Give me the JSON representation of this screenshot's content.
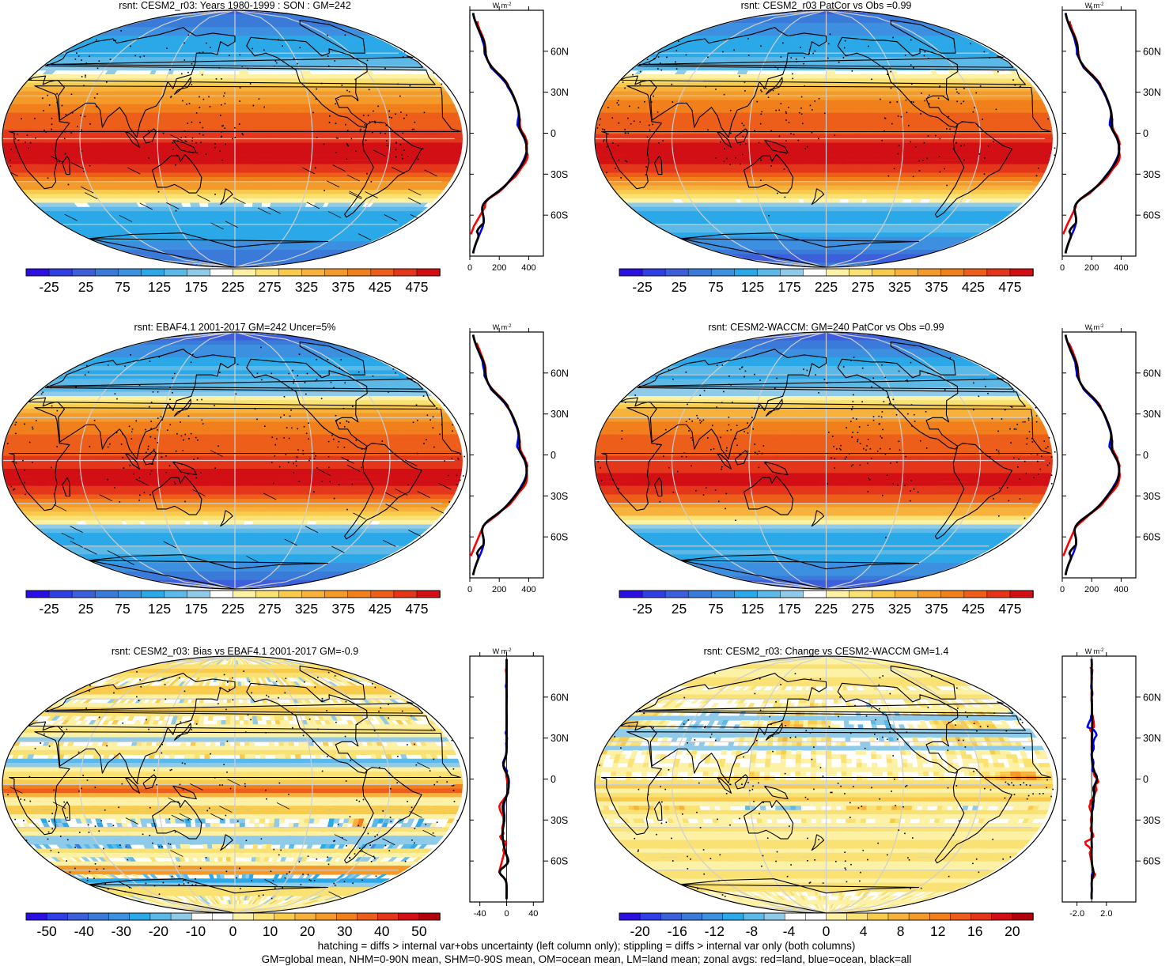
{
  "panels": [
    {
      "id": "p1",
      "title": "rsnt: CESM2_r03: Years 1980-1999 : SON : GM=242",
      "field": "mean",
      "hatch": true,
      "colorbar": {
        "ticks": [
          "-25",
          "25",
          "75",
          "125",
          "175",
          "225",
          "275",
          "325",
          "375",
          "425",
          "475"
        ]
      },
      "zonal": {
        "xticks": [
          {
            "v": 0,
            "t": "0"
          },
          {
            "v": 200,
            "t": "200"
          },
          {
            "v": 400,
            "t": "400"
          }
        ],
        "xlim": [
          0,
          500
        ],
        "unit": "W m-2",
        "mode": "mean"
      }
    },
    {
      "id": "p2",
      "title": "rsnt: CESM2_r03 PatCor vs Obs =0.99",
      "field": "mean",
      "hatch": false,
      "colorbar": {
        "ticks": [
          "-25",
          "25",
          "75",
          "125",
          "175",
          "225",
          "275",
          "325",
          "375",
          "425",
          "475"
        ]
      },
      "zonal": {
        "xticks": [
          {
            "v": 0,
            "t": "0"
          },
          {
            "v": 200,
            "t": "200"
          },
          {
            "v": 400,
            "t": "400"
          }
        ],
        "xlim": [
          0,
          500
        ],
        "unit": "W m-2",
        "mode": "mean"
      }
    },
    {
      "id": "p3",
      "title": "rsnt: EBAF4.1 2001-2017 GM=242 Uncer=5%",
      "field": "mean",
      "hatch": true,
      "colorbar": {
        "ticks": [
          "-25",
          "25",
          "75",
          "125",
          "175",
          "225",
          "275",
          "325",
          "375",
          "425",
          "475"
        ]
      },
      "zonal": {
        "xticks": [
          {
            "v": 0,
            "t": "0"
          },
          {
            "v": 200,
            "t": "200"
          },
          {
            "v": 400,
            "t": "400"
          }
        ],
        "xlim": [
          0,
          500
        ],
        "unit": "W m-2",
        "mode": "mean"
      }
    },
    {
      "id": "p4",
      "title": "rsnt: CESM2-WACCM: GM=240 PatCor vs Obs =0.99",
      "field": "mean",
      "hatch": false,
      "colorbar": {
        "ticks": [
          "-25",
          "25",
          "75",
          "125",
          "175",
          "225",
          "275",
          "325",
          "375",
          "425",
          "475"
        ]
      },
      "zonal": {
        "xticks": [
          {
            "v": 0,
            "t": "0"
          },
          {
            "v": 200,
            "t": "200"
          },
          {
            "v": 400,
            "t": "400"
          }
        ],
        "xlim": [
          0,
          500
        ],
        "unit": "W m-2",
        "mode": "mean"
      }
    },
    {
      "id": "p5",
      "title": "rsnt: CESM2_r03: Bias vs EBAF4.1 2001-2017  GM=-0.9",
      "field": "bias",
      "hatch": true,
      "colorbar": {
        "ticks": [
          "-50",
          "-40",
          "-30",
          "-20",
          "-10",
          "0",
          "10",
          "20",
          "30",
          "40",
          "50"
        ]
      },
      "zonal": {
        "xticks": [
          {
            "v": -40,
            "t": "-40"
          },
          {
            "v": 0,
            "t": "0"
          },
          {
            "v": 40,
            "t": "40"
          }
        ],
        "xlim": [
          -55,
          55
        ],
        "unit": "W m-2",
        "mode": "bias"
      }
    },
    {
      "id": "p6",
      "title": "rsnt: CESM2_r03: Change vs CESM2-WACCM GM=1.4",
      "field": "change",
      "hatch": false,
      "colorbar": {
        "ticks": [
          "-20",
          "-16",
          "-12",
          "-8",
          "-4",
          "0",
          "4",
          "8",
          "12",
          "16",
          "20"
        ]
      },
      "zonal": {
        "xticks": [
          {
            "v": -2,
            "t": "-2.0"
          },
          {
            "v": 2,
            "t": "2.0"
          }
        ],
        "xlim": [
          -4,
          6
        ],
        "unit": "W m-2",
        "mode": "change"
      }
    }
  ],
  "lat_labels": [
    "60N",
    "30N",
    "0",
    "30S",
    "60S"
  ],
  "palette_mean": [
    "#2a0fe0",
    "#2f3fe4",
    "#3d5fdb",
    "#3a7ad9",
    "#3d8fe0",
    "#2aa8e8",
    "#5cb8e6",
    "#8fcbe8",
    "#ffffff",
    "#fdf1a5",
    "#fae173",
    "#f8cb4c",
    "#f6b23c",
    "#f39a2a",
    "#f07f1c",
    "#ec5e1a",
    "#e3361a",
    "#d10f14"
  ],
  "palette_diff": [
    "#2a0fe0",
    "#2f3fe4",
    "#3d5fdb",
    "#3a7ad9",
    "#3d8fe0",
    "#2aa8e8",
    "#5cb8e6",
    "#8fcbe8",
    "#ffffff",
    "#ffffff",
    "#fdf1a5",
    "#fae173",
    "#f8cb4c",
    "#f6b23c",
    "#f39a2a",
    "#f07f1c",
    "#ec5e1a",
    "#e3361a",
    "#d10f14",
    "#b3000d"
  ],
  "zonal_colors": {
    "land": "#ff0000",
    "ocean": "#0000ff",
    "all": "#000000"
  },
  "footer": {
    "line1": "hatching = diffs > internal var+obs uncertainty (left column only); stippling = diffs > internal var only (both columns)",
    "line2": "GM=global mean, NHM=0-90N mean, SHM=0-90S mean, OM=ocean mean, LM=land mean; zonal avgs: red=land, blue=ocean, black=all"
  }
}
